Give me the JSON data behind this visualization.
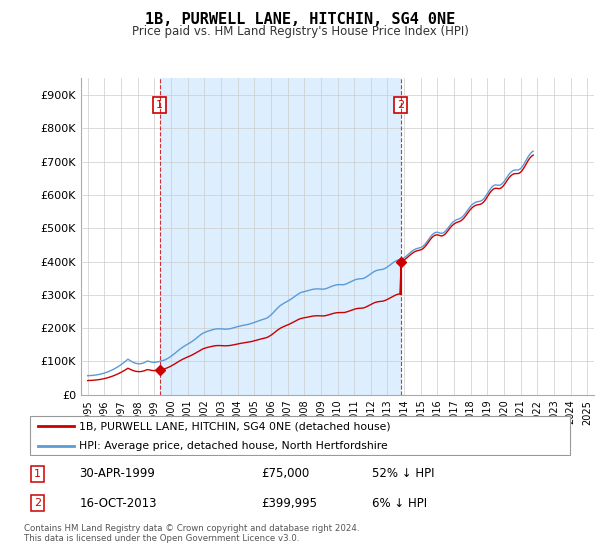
{
  "title": "1B, PURWELL LANE, HITCHIN, SG4 0NE",
  "subtitle": "Price paid vs. HM Land Registry's House Price Index (HPI)",
  "ylabel_ticks": [
    "£0",
    "£100K",
    "£200K",
    "£300K",
    "£400K",
    "£500K",
    "£600K",
    "£700K",
    "£800K",
    "£900K"
  ],
  "ytick_values": [
    0,
    100000,
    200000,
    300000,
    400000,
    500000,
    600000,
    700000,
    800000,
    900000
  ],
  "ylim": [
    0,
    950000
  ],
  "sale1_year": 1999.33,
  "sale1_price": 75000,
  "sale2_year": 2013.79,
  "sale2_price": 399995,
  "legend_red": "1B, PURWELL LANE, HITCHIN, SG4 0NE (detached house)",
  "legend_blue": "HPI: Average price, detached house, North Hertfordshire",
  "footer": "Contains HM Land Registry data © Crown copyright and database right 2024.\nThis data is licensed under the Open Government Licence v3.0.",
  "hpi_color": "#5b9bd5",
  "shade_color": "#ddeeff",
  "price_color": "#cc0000",
  "marker_color": "#cc0000",
  "grid_color": "#cccccc",
  "background_color": "#ffffff",
  "xtick_years": [
    1995,
    1996,
    1997,
    1998,
    1999,
    2000,
    2001,
    2002,
    2003,
    2004,
    2005,
    2006,
    2007,
    2008,
    2009,
    2010,
    2011,
    2012,
    2013,
    2014,
    2015,
    2016,
    2017,
    2018,
    2019,
    2020,
    2021,
    2022,
    2023,
    2024,
    2025
  ],
  "hpi_base_index": [
    57.3,
    57.5,
    57.8,
    58.1,
    58.5,
    59.0,
    59.5,
    60.2,
    60.9,
    61.8,
    62.8,
    63.9,
    65.1,
    66.5,
    68.0,
    69.6,
    71.4,
    73.3,
    75.3,
    77.4,
    79.7,
    82.1,
    84.7,
    87.4,
    90.3,
    93.3,
    96.4,
    99.7,
    103.2,
    106.9,
    104.5,
    101.8,
    99.2,
    97.1,
    95.4,
    94.2,
    93.5,
    93.2,
    93.4,
    94.1,
    95.3,
    97.0,
    99.2,
    101.5,
    100.7,
    99.5,
    98.2,
    97.5,
    97.4,
    97.8,
    98.5,
    99.4,
    100.5,
    101.5,
    102.5,
    103.8,
    105.5,
    107.6,
    110.0,
    112.6,
    115.4,
    118.4,
    121.7,
    125.0,
    128.5,
    132.0,
    135.5,
    138.7,
    141.8,
    144.5,
    147.2,
    149.6,
    152.0,
    154.3,
    156.8,
    159.5,
    162.4,
    165.5,
    168.8,
    172.2,
    175.8,
    179.2,
    182.2,
    184.8,
    186.7,
    188.5,
    190.2,
    191.5,
    193.0,
    194.3,
    195.6,
    196.7,
    197.5,
    198.0,
    198.3,
    198.2,
    197.9,
    197.5,
    197.2,
    197.0,
    197.2,
    197.5,
    198.0,
    198.8,
    199.8,
    201.0,
    202.3,
    203.5,
    204.6,
    205.7,
    206.7,
    207.6,
    208.4,
    209.2,
    210.0,
    210.8,
    211.8,
    213.0,
    214.3,
    215.7,
    217.2,
    218.7,
    220.2,
    221.8,
    223.3,
    224.8,
    226.1,
    227.3,
    228.5,
    230.3,
    232.8,
    235.9,
    239.5,
    243.5,
    247.8,
    252.3,
    256.8,
    261.2,
    265.1,
    268.5,
    271.4,
    274.0,
    276.3,
    278.5,
    280.8,
    283.3,
    286.0,
    288.8,
    291.8,
    294.8,
    297.8,
    300.8,
    303.5,
    305.8,
    307.5,
    308.8,
    309.8,
    310.8,
    311.8,
    313.0,
    314.3,
    315.5,
    316.5,
    317.3,
    317.8,
    318.0,
    318.0,
    317.8,
    317.5,
    317.2,
    317.3,
    318.0,
    319.2,
    320.8,
    322.5,
    324.3,
    326.0,
    327.5,
    328.8,
    329.8,
    330.5,
    330.8,
    330.8,
    330.5,
    330.5,
    331.2,
    332.5,
    334.2,
    336.2,
    338.3,
    340.5,
    342.5,
    344.3,
    345.8,
    347.0,
    347.8,
    348.2,
    348.3,
    348.8,
    350.0,
    352.0,
    354.5,
    357.3,
    360.3,
    363.3,
    366.3,
    369.0,
    371.3,
    373.0,
    374.3,
    375.2,
    375.8,
    376.3,
    377.3,
    379.0,
    381.3,
    384.0,
    387.0,
    390.3,
    393.5,
    396.5,
    399.3,
    401.8,
    403.8,
    405.3,
    406.5,
    407.5,
    409.0,
    411.5,
    414.5,
    418.0,
    421.8,
    425.5,
    429.0,
    432.3,
    435.0,
    437.3,
    439.0,
    440.3,
    441.3,
    442.3,
    444.3,
    447.5,
    451.8,
    457.0,
    462.8,
    468.8,
    474.5,
    479.5,
    483.5,
    486.3,
    487.8,
    488.0,
    487.0,
    485.5,
    484.8,
    485.8,
    488.5,
    492.5,
    497.5,
    503.0,
    508.5,
    513.5,
    517.8,
    521.3,
    524.0,
    526.0,
    527.5,
    529.0,
    531.3,
    534.5,
    538.8,
    544.0,
    549.8,
    555.8,
    561.5,
    566.5,
    570.8,
    574.3,
    577.0,
    578.8,
    579.8,
    580.5,
    581.5,
    583.5,
    587.0,
    591.8,
    597.8,
    604.5,
    611.3,
    617.5,
    622.8,
    626.8,
    629.3,
    630.3,
    629.8,
    629.0,
    629.5,
    631.5,
    635.3,
    640.3,
    646.3,
    652.8,
    659.0,
    664.5,
    668.8,
    672.0,
    674.0,
    675.0,
    675.0,
    675.0,
    676.5,
    679.5,
    684.3,
    690.3,
    697.3,
    704.8,
    712.3,
    719.0,
    724.5,
    728.8,
    731.5
  ]
}
